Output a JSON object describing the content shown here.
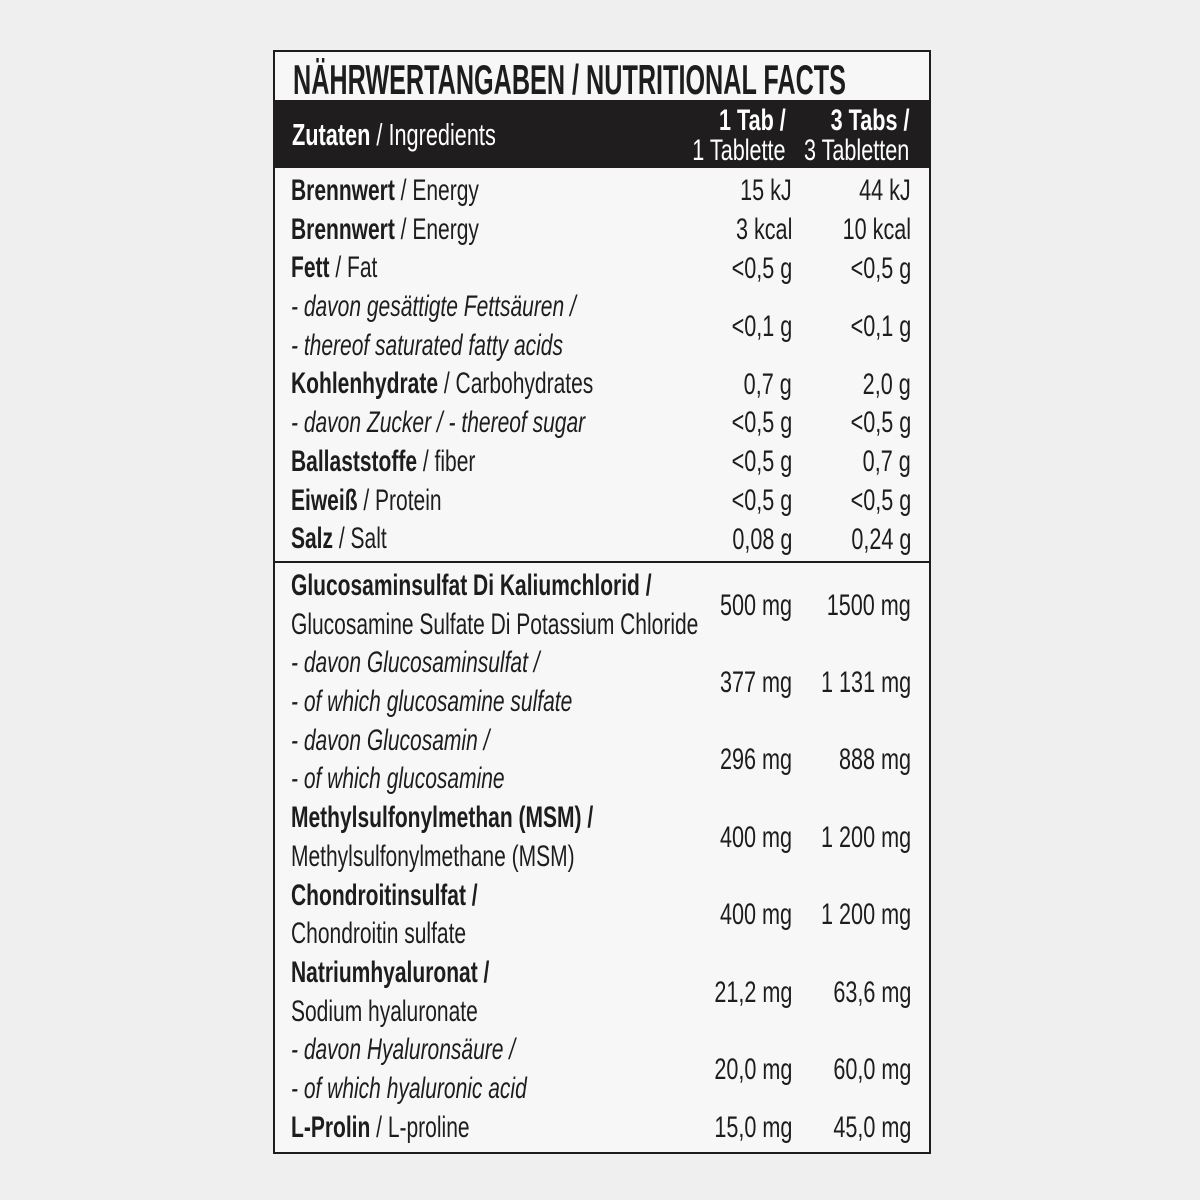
{
  "title": "NÄHRWERTANGABEN / NUTRITIONAL FACTS",
  "header": {
    "ingredients_bold": "Zutaten",
    "ingredients_rest": " / Ingredients",
    "col1_top": "1 Tab /",
    "col1_bottom": "1 Tablette",
    "col2_top": "3 Tabs /",
    "col2_bottom": "3 Tabletten"
  },
  "sections": [
    {
      "rows": [
        {
          "lines": [
            {
              "b": "Brennwert",
              "t": " / Energy"
            }
          ],
          "v1": "15 kJ",
          "v2": "44 kJ"
        },
        {
          "lines": [
            {
              "b": "Brennwert",
              "t": "  / Energy"
            }
          ],
          "v1": "3 kcal",
          "v2": "10 kcal"
        },
        {
          "lines": [
            {
              "b": "Fett",
              "t": " / Fat"
            }
          ],
          "v1": "<0,5 g",
          "v2": "<0,5 g"
        },
        {
          "lines": [
            {
              "i": "- davon gesättigte Fettsäuren /"
            },
            {
              "i": "- thereof saturated fatty acids"
            }
          ],
          "v1": "<0,1 g",
          "v2": "<0,1 g"
        },
        {
          "lines": [
            {
              "b": "Kohlenhydrate",
              "t": " / Carbohydrates"
            }
          ],
          "v1": "0,7 g",
          "v2": "2,0 g"
        },
        {
          "lines": [
            {
              "i": "- davon Zucker  / - thereof sugar"
            }
          ],
          "v1": "<0,5 g",
          "v2": "<0,5 g"
        },
        {
          "lines": [
            {
              "b": "Ballaststoffe",
              "t": " / fiber"
            }
          ],
          "v1": "<0,5 g",
          "v2": "0,7 g"
        },
        {
          "lines": [
            {
              "b": "Eiweiß",
              "t": " / Protein"
            }
          ],
          "v1": "<0,5 g",
          "v2": "<0,5 g"
        },
        {
          "lines": [
            {
              "b": "Salz",
              "t": " / Salt"
            }
          ],
          "v1": "0,08 g",
          "v2": "0,24 g"
        }
      ]
    },
    {
      "rows": [
        {
          "lines": [
            {
              "b": "Glucosaminsulfat Di Kaliumchlorid /"
            },
            {
              "t": "Glucosamine Sulfate Di Potassium Chloride"
            }
          ],
          "v1": "500 mg",
          "v2": "1500 mg"
        },
        {
          "lines": [
            {
              "i": "- davon Glucosaminsulfat  /"
            },
            {
              "i": "- of which glucosamine sulfate"
            }
          ],
          "v1": "377 mg",
          "v2": "1 131 mg"
        },
        {
          "lines": [
            {
              "i": "- davon Glucosamin /"
            },
            {
              "i": "- of which glucosamine"
            }
          ],
          "v1": "296 mg",
          "v2": "888 mg"
        },
        {
          "lines": [
            {
              "b": "Methylsulfonylmethan  (MSM) /"
            },
            {
              "t": "Methylsulfonylmethane (MSM)"
            }
          ],
          "v1": "400 mg",
          "v2": "1 200 mg"
        },
        {
          "lines": [
            {
              "b": "Chondroitinsulfat /"
            },
            {
              "t": "Chondroitin sulfate"
            }
          ],
          "v1": "400 mg",
          "v2": "1 200 mg"
        },
        {
          "lines": [
            {
              "b": "Natriumhyaluronat /"
            },
            {
              "t": "Sodium hyaluronate"
            }
          ],
          "v1": "21,2 mg",
          "v2": "63,6 mg"
        },
        {
          "lines": [
            {
              "i": "- davon Hyaluronsäure /"
            },
            {
              "i": "- of which hyaluronic acid"
            }
          ],
          "v1": "20,0 mg",
          "v2": "60,0 mg"
        },
        {
          "lines": [
            {
              "b": "L-Prolin",
              "t": " / L-proline"
            }
          ],
          "v1": "15,0 mg",
          "v2": "45,0 mg"
        }
      ]
    }
  ]
}
